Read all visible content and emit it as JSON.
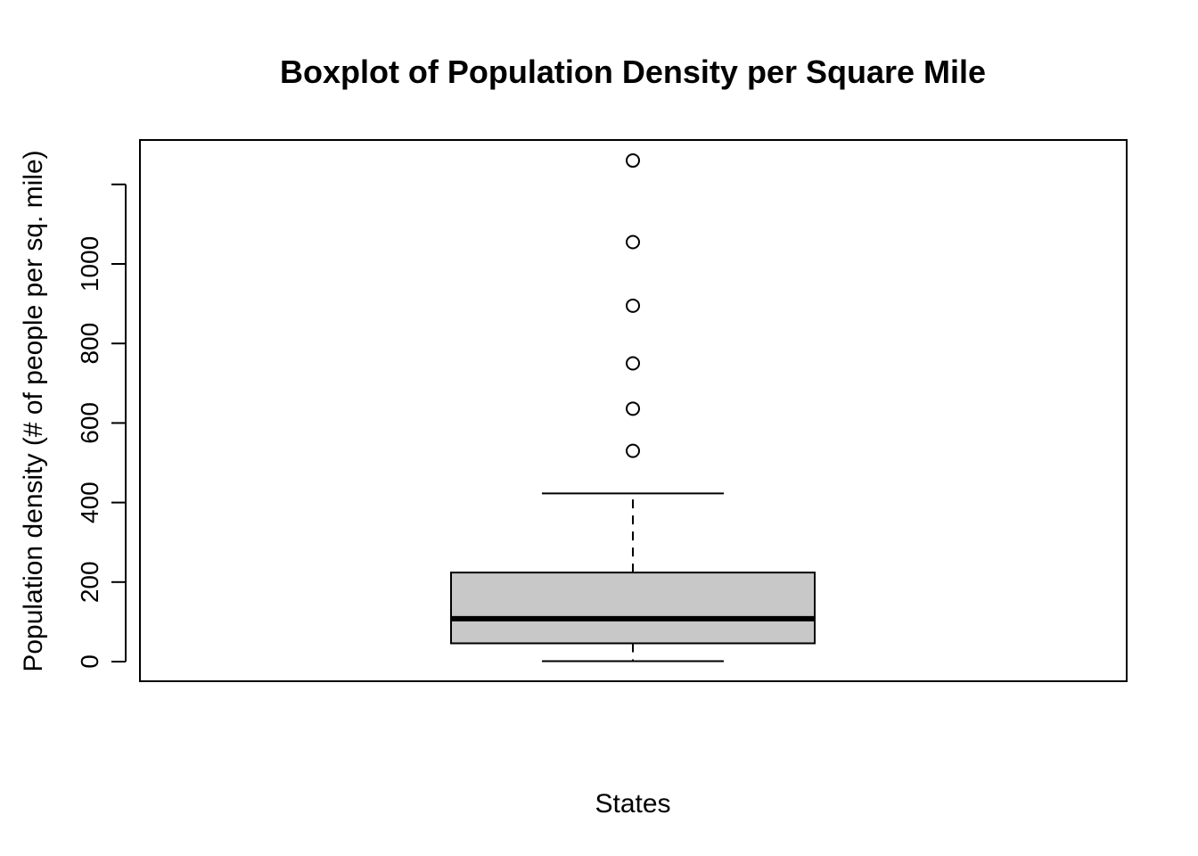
{
  "chart_data": {
    "type": "boxplot",
    "title": "Boxplot of Population Density per Square Mile",
    "xlabel": "States",
    "ylabel": "Population density (# of people per sq. mile)",
    "ylim": [
      0,
      1260
    ],
    "y_ticks": [
      0,
      200,
      400,
      600,
      800,
      1000,
      1200
    ],
    "y_tick_labels": [
      "0",
      "200",
      "400",
      "600",
      "800",
      "1000",
      ""
    ],
    "grid": false,
    "box": {
      "whisker_low": 1,
      "q1": 46,
      "median": 108,
      "q3": 224,
      "whisker_high": 423,
      "fill": "#c8c8c8"
    },
    "outliers": [
      530,
      636,
      750,
      895,
      1055,
      1260
    ]
  }
}
